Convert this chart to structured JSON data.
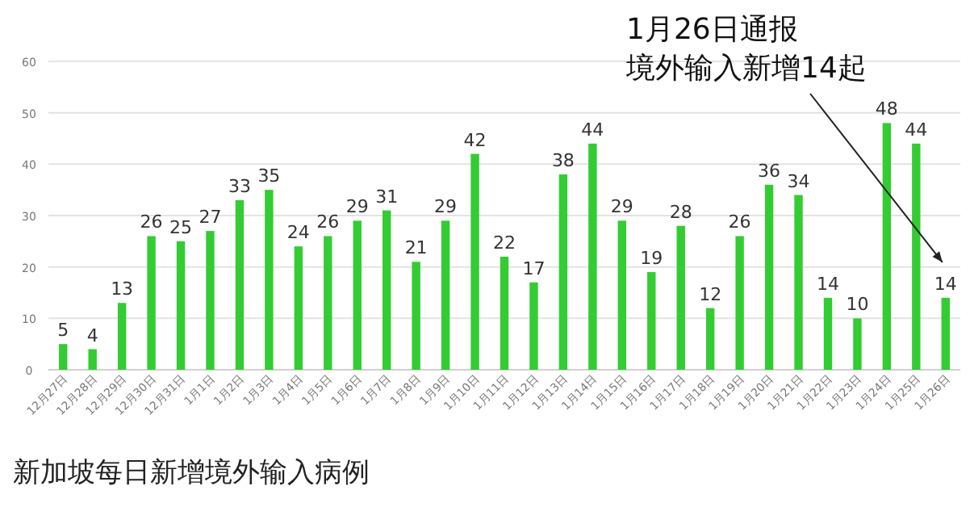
{
  "chart_data": {
    "type": "bar",
    "title": "新加坡每日新增境外输入病例",
    "categories": [
      "12月27日",
      "12月28日",
      "12月29日",
      "12月30日",
      "12月31日",
      "1月1日",
      "1月2日",
      "1月3日",
      "1月4日",
      "1月5日",
      "1月6日",
      "1月7日",
      "1月8日",
      "1月9日",
      "1月10日",
      "1月11日",
      "1月12日",
      "1月13日",
      "1月14日",
      "1月15日",
      "1月16日",
      "1月17日",
      "1月18日",
      "1月19日",
      "1月20日",
      "1月21日",
      "1月22日",
      "1月23日",
      "1月24日",
      "1月25日",
      "1月26日"
    ],
    "values": [
      5,
      4,
      13,
      26,
      25,
      27,
      33,
      35,
      24,
      26,
      29,
      31,
      21,
      29,
      42,
      22,
      17,
      38,
      44,
      29,
      19,
      28,
      12,
      26,
      36,
      34,
      14,
      10,
      48,
      44,
      14
    ],
    "color": "#33cc33",
    "ylim": [
      0,
      60
    ],
    "yticks": [
      0,
      10,
      20,
      30,
      40,
      50,
      60
    ],
    "grid": "y",
    "data_labels": true,
    "annotations": [
      "1月26日通报",
      "境外输入新增14起"
    ]
  }
}
